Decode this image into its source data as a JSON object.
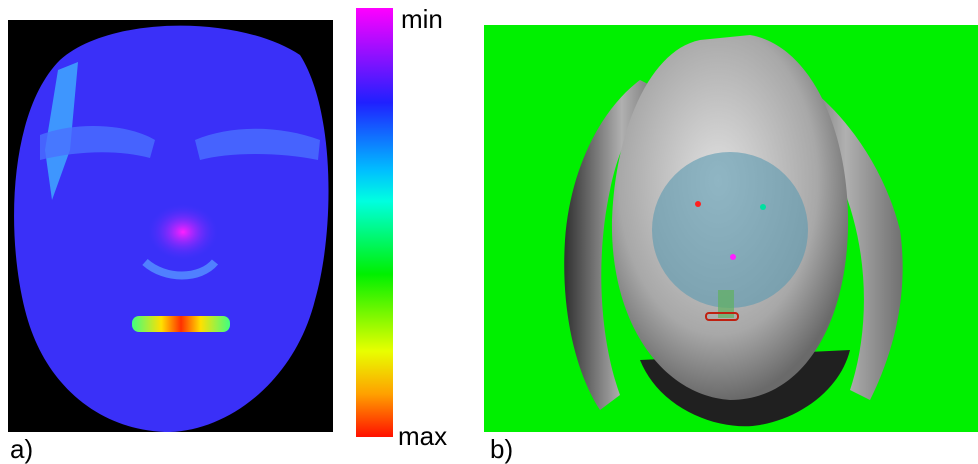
{
  "panels": [
    {
      "label": "a)",
      "colorbar": {
        "top_label": "min",
        "bottom_label": "max"
      }
    },
    {
      "label": "b)"
    }
  ]
}
